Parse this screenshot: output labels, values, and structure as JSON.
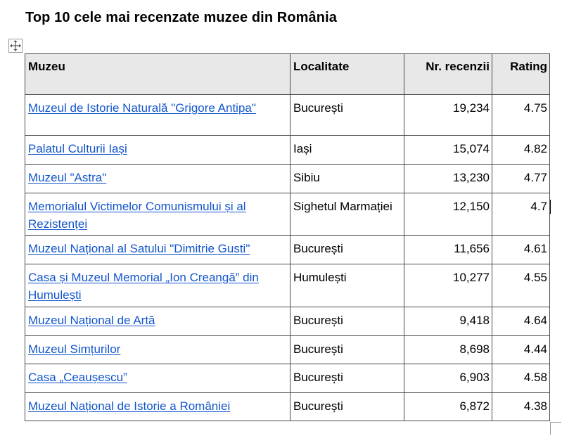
{
  "title": "Top 10 cele mai recenzate muzee din România",
  "table": {
    "headers": [
      "Muzeu",
      "Localitate",
      "Nr. recenzii",
      "Rating"
    ],
    "rows": [
      {
        "muzeu": "Muzeul de Istorie Naturală \"Grigore Antipa\"",
        "localitate": "București",
        "recenzii": "19,234",
        "rating": "4.75"
      },
      {
        "muzeu": "Palatul Culturii Iași",
        "localitate": "Iași",
        "recenzii": "15,074",
        "rating": "4.82"
      },
      {
        "muzeu": "Muzeul \"Astra\"",
        "localitate": "Sibiu",
        "recenzii": "13,230",
        "rating": "4.77"
      },
      {
        "muzeu": "Memorialul Victimelor Comunismului și al Rezistenței",
        "localitate": "Sighetul Marmației",
        "recenzii": "12,150",
        "rating": "4.7"
      },
      {
        "muzeu": "Muzeul Național al Satului \"Dimitrie Gusti\"",
        "localitate": "București",
        "recenzii": "11,656",
        "rating": "4.61"
      },
      {
        "muzeu": "Casa și Muzeul Memorial „Ion Creangă” din Humulești",
        "localitate": "Humulești",
        "recenzii": "10,277",
        "rating": "4.55"
      },
      {
        "muzeu": "Muzeul Național de Artă",
        "localitate": "București",
        "recenzii": "9,418",
        "rating": "4.64"
      },
      {
        "muzeu": "Muzeul Simțurilor",
        "localitate": "București",
        "recenzii": "8,698",
        "rating": "4.44"
      },
      {
        "muzeu": "Casa „Ceaușescu”",
        "localitate": "București",
        "recenzii": "6,903",
        "rating": "4.58"
      },
      {
        "muzeu": "Muzeul Național de Istorie a României",
        "localitate": "București",
        "recenzii": "6,872",
        "rating": "4.38"
      }
    ]
  },
  "colors": {
    "link": "#1155cc",
    "header_bg": "#e8e8e8",
    "border": "#4a4a4a"
  },
  "icons": {
    "table_handle": "move-icon"
  }
}
